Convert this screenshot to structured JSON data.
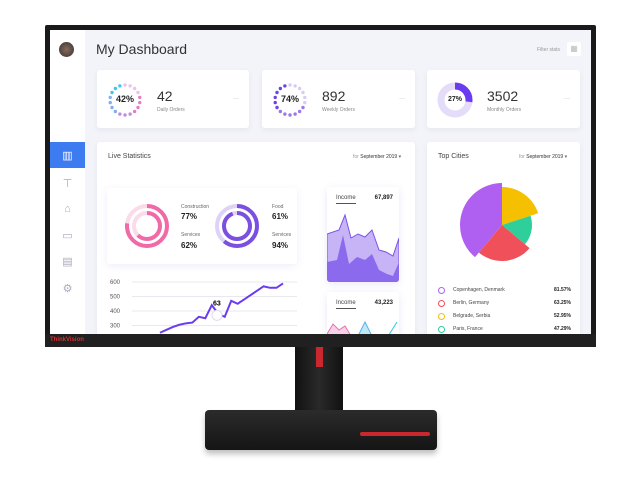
{
  "header": {
    "title": "My Dashboard",
    "filter_label": "Filter stats"
  },
  "sidebar": {
    "items": [
      {
        "icon": "bar-chart-icon",
        "active": true
      },
      {
        "icon": "signpost-icon"
      },
      {
        "icon": "basket-icon"
      },
      {
        "icon": "chat-icon"
      },
      {
        "icon": "clipboard-icon"
      },
      {
        "icon": "gear-icon"
      }
    ]
  },
  "stats": [
    {
      "percent": "42%",
      "value": "42",
      "label": "Daily Orders",
      "more": "...",
      "color": "#e880c8"
    },
    {
      "percent": "74%",
      "value": "892",
      "label": "Weekly Orders",
      "more": "...",
      "color": "#7b4fe0"
    },
    {
      "percent": "27%",
      "value": "3502",
      "label": "Monthly Orders",
      "more": "...",
      "color": "#6a3cf0",
      "fill": 0.27
    }
  ],
  "live": {
    "title": "Live Statistics",
    "period_prefix": "for",
    "period": "September 2019",
    "rings": [
      {
        "a_label": "Construction",
        "a_value": "77%",
        "b_label": "Services",
        "b_value": "62%",
        "color": "#f06aa8"
      },
      {
        "a_label": "Food",
        "a_value": "61%",
        "b_label": "Services",
        "b_value": "94%",
        "color": "#7b4fe0"
      }
    ],
    "line": {
      "yticks": [
        "600",
        "500",
        "400",
        "300"
      ],
      "callout": "63",
      "values": [
        250,
        270,
        290,
        305,
        315,
        320,
        360,
        350,
        440,
        380,
        360,
        470,
        450,
        480,
        510,
        540,
        570,
        560,
        560,
        590
      ]
    },
    "income": [
      {
        "label": "Income",
        "value": "67,897"
      },
      {
        "label": "Income",
        "value": "43,223"
      }
    ]
  },
  "cities": {
    "title": "Top Cities",
    "period_prefix": "for",
    "period": "September 2019",
    "items": [
      {
        "name": "Copenhagen, Denmark",
        "value": "81.57%",
        "color": "#b060f0"
      },
      {
        "name": "Berlin, Germany",
        "value": "63.25%",
        "color": "#f0505a"
      },
      {
        "name": "Belgrade, Serbia",
        "value": "52.95%",
        "color": "#f5c000"
      },
      {
        "name": "Paris, France",
        "value": "47.29%",
        "color": "#2ecf9a"
      }
    ]
  },
  "monitor": {
    "brand": "ThinkVision"
  }
}
